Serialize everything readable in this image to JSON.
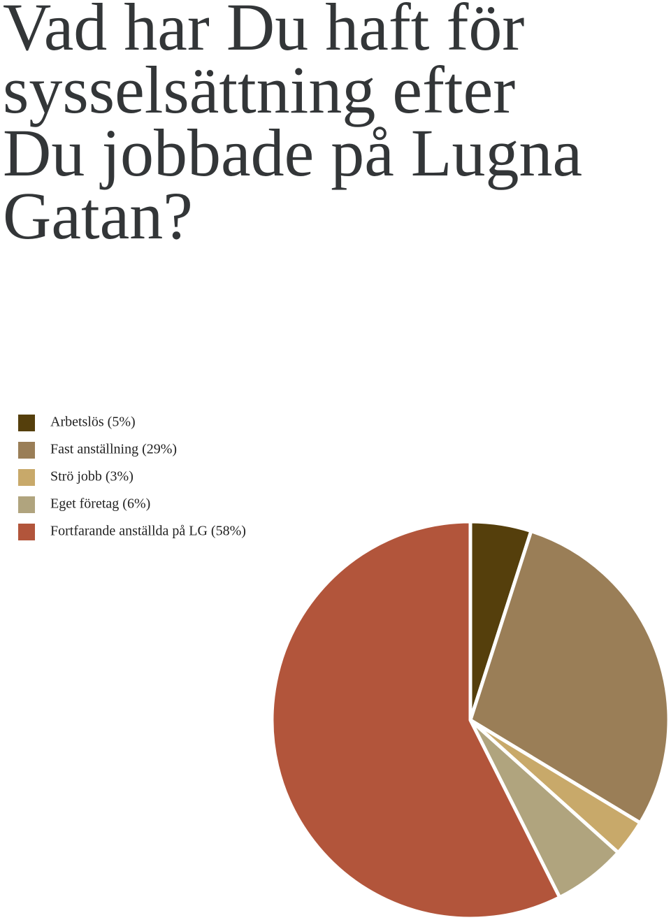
{
  "chart_data": {
    "type": "pie",
    "title": "Vad har Du haft för sysselsättning efter Du jobbade på Lugna Gatan?",
    "categories": [
      "Arbetslös (5%)",
      "Fast anställning (29%)",
      "Strö jobb (3%)",
      "Eget företag (6%)",
      "Fortfarande anställda på LG (58%)"
    ],
    "values": [
      5,
      29,
      3,
      6,
      58
    ],
    "colors": [
      "#553f0c",
      "#9a7e57",
      "#c8a96a",
      "#b0a47e",
      "#b2553b"
    ],
    "legend": "top-left"
  }
}
